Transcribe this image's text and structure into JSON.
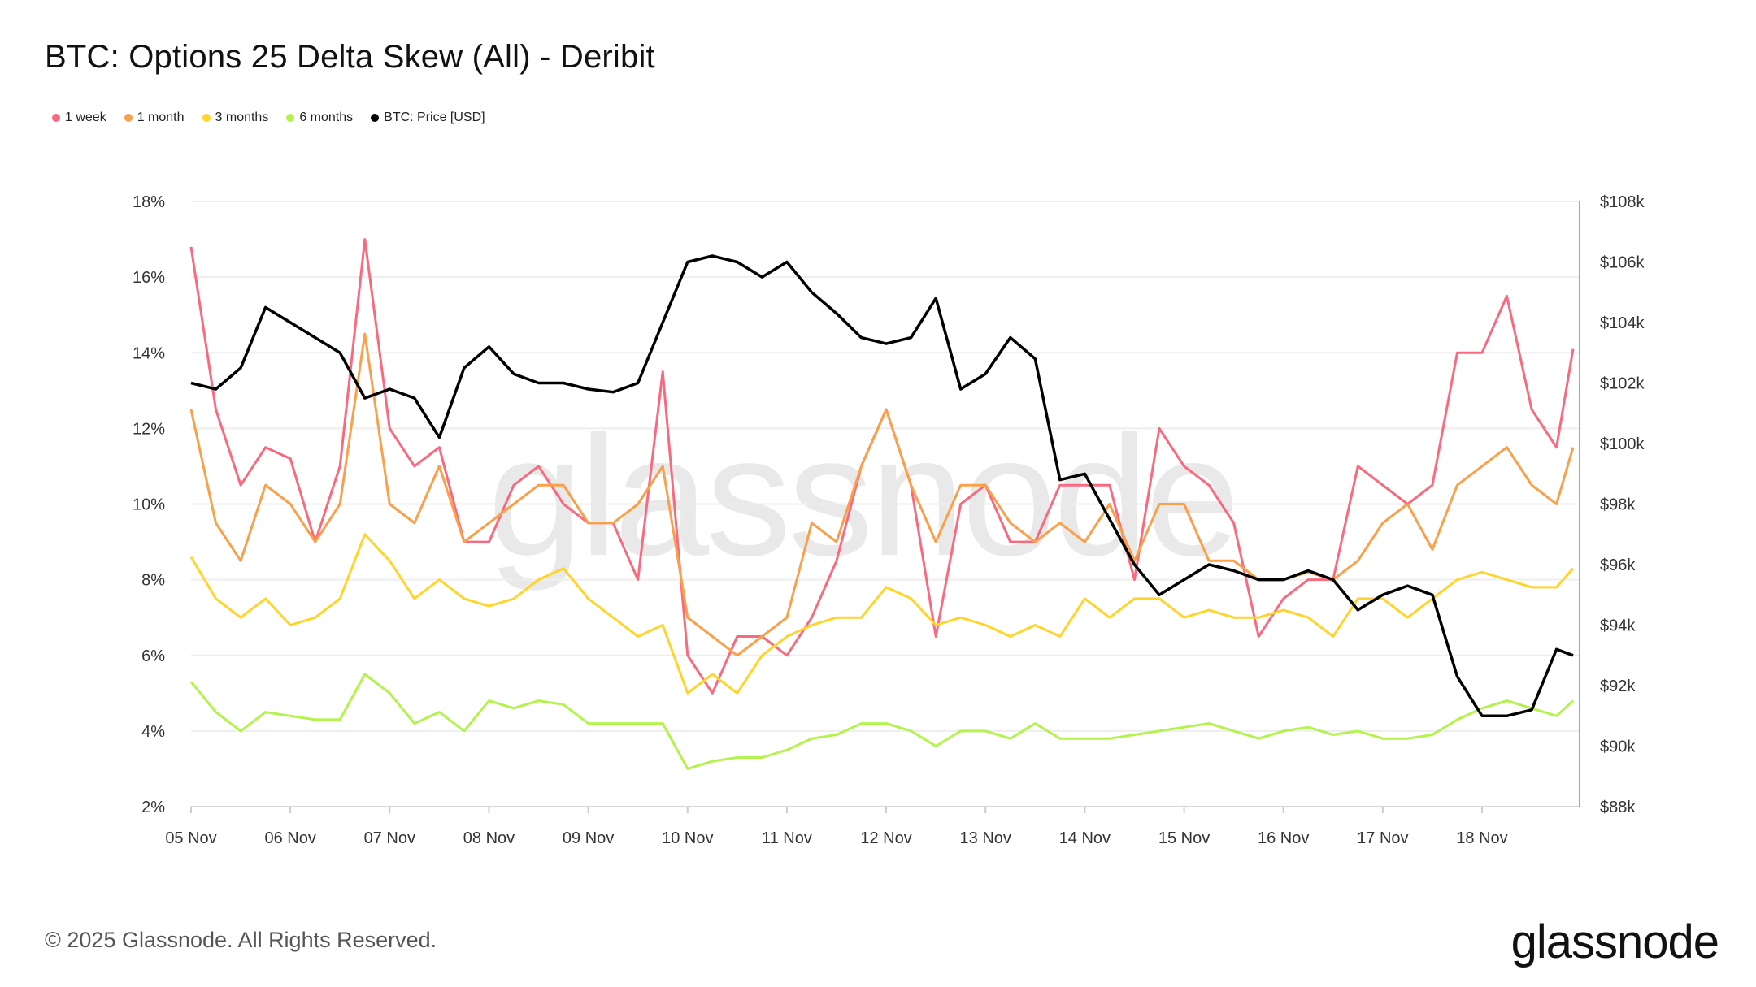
{
  "title": "BTC: Options 25 Delta Skew (All) - Deribit",
  "footer": {
    "copyright": "© 2025 Glassnode. All Rights Reserved.",
    "logo": "glassnode",
    "watermark": "glassnode"
  },
  "chart_data": {
    "type": "line",
    "title": "BTC: Options 25 Delta Skew (All) - Deribit",
    "legend_position": "top-left",
    "grid": true,
    "x_tick_labels": [
      "05 Nov",
      "06 Nov",
      "07 Nov",
      "08 Nov",
      "09 Nov",
      "10 Nov",
      "11 Nov",
      "12 Nov",
      "13 Nov",
      "14 Nov",
      "15 Nov",
      "16 Nov",
      "17 Nov",
      "18 Nov"
    ],
    "y_left": {
      "ylim": [
        2,
        18
      ],
      "tick_labels": [
        "2%",
        "4%",
        "6%",
        "8%",
        "10%",
        "12%",
        "14%",
        "16%",
        "18%"
      ]
    },
    "y_right": {
      "ylim": [
        88000,
        108000
      ],
      "tick_labels": [
        "$88k",
        "$90k",
        "$92k",
        "$94k",
        "$96k",
        "$98k",
        "$100k",
        "$102k",
        "$104k",
        "$106k",
        "$108k"
      ]
    },
    "x": [
      "2025-11-05T00:00",
      "2025-11-05T06:00",
      "2025-11-05T12:00",
      "2025-11-05T18:00",
      "2025-11-06T00:00",
      "2025-11-06T06:00",
      "2025-11-06T12:00",
      "2025-11-06T18:00",
      "2025-11-07T00:00",
      "2025-11-07T06:00",
      "2025-11-07T12:00",
      "2025-11-07T18:00",
      "2025-11-08T00:00",
      "2025-11-08T06:00",
      "2025-11-08T12:00",
      "2025-11-08T18:00",
      "2025-11-09T00:00",
      "2025-11-09T06:00",
      "2025-11-09T12:00",
      "2025-11-09T18:00",
      "2025-11-10T00:00",
      "2025-11-10T06:00",
      "2025-11-10T12:00",
      "2025-11-10T18:00",
      "2025-11-11T00:00",
      "2025-11-11T06:00",
      "2025-11-11T12:00",
      "2025-11-11T18:00",
      "2025-11-12T00:00",
      "2025-11-12T06:00",
      "2025-11-12T12:00",
      "2025-11-12T18:00",
      "2025-11-13T00:00",
      "2025-11-13T06:00",
      "2025-11-13T12:00",
      "2025-11-13T18:00",
      "2025-11-14T00:00",
      "2025-11-14T06:00",
      "2025-11-14T12:00",
      "2025-11-14T18:00",
      "2025-11-15T00:00",
      "2025-11-15T06:00",
      "2025-11-15T12:00",
      "2025-11-15T18:00",
      "2025-11-16T00:00",
      "2025-11-16T06:00",
      "2025-11-16T12:00",
      "2025-11-16T18:00",
      "2025-11-17T00:00",
      "2025-11-17T06:00",
      "2025-11-17T12:00",
      "2025-11-17T18:00",
      "2025-11-18T00:00",
      "2025-11-18T06:00",
      "2025-11-18T12:00",
      "2025-11-18T18:00",
      "2025-11-18T22:00"
    ],
    "series": [
      {
        "name": "1 week",
        "axis": "left",
        "color": "#f86a7f",
        "values": [
          16.8,
          12.5,
          10.5,
          11.5,
          11.2,
          9.0,
          11.0,
          17.0,
          12.0,
          11.0,
          11.5,
          9.0,
          9.0,
          10.5,
          11.0,
          10.0,
          9.5,
          9.5,
          8.0,
          13.5,
          6.0,
          5.0,
          6.5,
          6.5,
          6.0,
          7.0,
          8.5,
          11.0,
          12.5,
          10.5,
          6.5,
          10.0,
          10.5,
          9.0,
          9.0,
          10.5,
          10.5,
          10.5,
          8.0,
          12.0,
          11.0,
          10.5,
          9.5,
          6.5,
          7.5,
          8.0,
          8.0,
          11.0,
          10.5,
          10.0,
          10.5,
          14.0,
          14.0,
          15.5,
          12.5,
          11.5,
          14.1
        ]
      },
      {
        "name": "1 month",
        "axis": "left",
        "color": "#f9a04a",
        "values": [
          12.5,
          9.5,
          8.5,
          10.5,
          10.0,
          9.0,
          10.0,
          14.5,
          10.0,
          9.5,
          11.0,
          9.0,
          9.5,
          10.0,
          10.5,
          10.5,
          9.5,
          9.5,
          10.0,
          11.0,
          7.0,
          6.5,
          6.0,
          6.5,
          7.0,
          9.5,
          9.0,
          11.0,
          12.5,
          10.5,
          9.0,
          10.5,
          10.5,
          9.5,
          9.0,
          9.5,
          9.0,
          10.0,
          8.5,
          10.0,
          10.0,
          8.5,
          8.5,
          8.0,
          8.0,
          8.2,
          8.0,
          8.5,
          9.5,
          10.0,
          8.8,
          10.5,
          11.0,
          11.5,
          10.5,
          10.0,
          11.5
        ]
      },
      {
        "name": "3 months",
        "axis": "left",
        "color": "#ffd52b",
        "values": [
          8.6,
          7.5,
          7.0,
          7.5,
          6.8,
          7.0,
          7.5,
          9.2,
          8.5,
          7.5,
          8.0,
          7.5,
          7.3,
          7.5,
          8.0,
          8.3,
          7.5,
          7.0,
          6.5,
          6.8,
          5.0,
          5.5,
          5.0,
          6.0,
          6.5,
          6.8,
          7.0,
          7.0,
          7.8,
          7.5,
          6.8,
          7.0,
          6.8,
          6.5,
          6.8,
          6.5,
          7.5,
          7.0,
          7.5,
          7.5,
          7.0,
          7.2,
          7.0,
          7.0,
          7.2,
          7.0,
          6.5,
          7.5,
          7.5,
          7.0,
          7.5,
          8.0,
          8.2,
          8.0,
          7.8,
          7.8,
          8.3
        ]
      },
      {
        "name": "6 months",
        "axis": "left",
        "color": "#b3f34c",
        "values": [
          5.3,
          4.5,
          4.0,
          4.5,
          4.4,
          4.3,
          4.3,
          5.5,
          5.0,
          4.2,
          4.5,
          4.0,
          4.8,
          4.6,
          4.8,
          4.7,
          4.2,
          4.2,
          4.2,
          4.2,
          3.0,
          3.2,
          3.3,
          3.3,
          3.5,
          3.8,
          3.9,
          4.2,
          4.2,
          4.0,
          3.6,
          4.0,
          4.0,
          3.8,
          4.2,
          3.8,
          3.8,
          3.8,
          3.9,
          4.0,
          4.1,
          4.2,
          4.0,
          3.8,
          4.0,
          4.1,
          3.9,
          4.0,
          3.8,
          3.8,
          3.9,
          4.3,
          4.6,
          4.8,
          4.6,
          4.4,
          4.8
        ]
      },
      {
        "name": "BTC: Price [USD]",
        "axis": "right",
        "color": "#000000",
        "values": [
          102000,
          101800,
          102500,
          104500,
          104000,
          103500,
          103000,
          101500,
          101800,
          101500,
          100200,
          102500,
          103200,
          102300,
          102000,
          102000,
          101800,
          101700,
          102000,
          104000,
          106000,
          106200,
          106000,
          105500,
          106000,
          105000,
          104300,
          103500,
          103300,
          103500,
          104800,
          101800,
          102300,
          103500,
          102800,
          98800,
          99000,
          97500,
          96000,
          95000,
          95500,
          96000,
          95800,
          95500,
          95500,
          95800,
          95500,
          94500,
          95000,
          95300,
          95000,
          92300,
          91000,
          91000,
          91200,
          93200,
          93000
        ]
      }
    ]
  }
}
